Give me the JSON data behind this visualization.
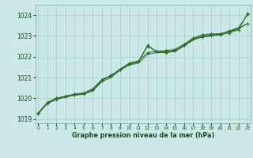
{
  "background_color": "#cce8e8",
  "grid_color": "#aacccc",
  "line_color": "#2d6b2d",
  "marker_color": "#2d6b2d",
  "text_color": "#1a4a1a",
  "xlabel": "Graphe pression niveau de la mer (hPa)",
  "ylim": [
    1018.8,
    1024.5
  ],
  "xlim": [
    -0.3,
    23.3
  ],
  "yticks": [
    1019,
    1020,
    1021,
    1022,
    1023,
    1024
  ],
  "xticks": [
    0,
    1,
    2,
    3,
    4,
    5,
    6,
    7,
    8,
    9,
    10,
    11,
    12,
    13,
    14,
    15,
    16,
    17,
    18,
    19,
    20,
    21,
    22,
    23
  ],
  "s1_x": [
    0,
    1,
    2,
    3,
    4,
    5,
    6,
    7,
    8,
    9,
    10,
    11,
    12,
    13,
    14,
    15,
    16,
    17,
    18,
    19,
    20,
    21,
    22,
    23
  ],
  "s1_y": [
    1019.3,
    1019.8,
    1020.0,
    1020.1,
    1020.15,
    1020.2,
    1020.4,
    1020.85,
    1021.1,
    1021.4,
    1021.65,
    1021.75,
    1022.55,
    1022.25,
    1022.2,
    1022.3,
    1022.55,
    1022.85,
    1022.95,
    1023.0,
    1023.05,
    1023.15,
    1023.3,
    1024.1
  ],
  "s2_x": [
    0,
    1,
    2,
    3,
    4,
    5,
    6,
    7,
    8,
    9,
    10,
    11,
    12,
    13,
    14,
    15,
    16,
    17,
    18,
    19,
    20,
    21,
    22,
    23
  ],
  "s2_y": [
    1019.25,
    1019.75,
    1019.95,
    1020.05,
    1020.15,
    1020.2,
    1020.35,
    1020.8,
    1021.0,
    1021.35,
    1021.6,
    1021.7,
    1022.1,
    1022.2,
    1022.2,
    1022.25,
    1022.5,
    1022.8,
    1022.95,
    1023.0,
    1023.1,
    1023.2,
    1023.35,
    1023.6
  ],
  "s3_x": [
    0,
    1,
    2,
    3,
    4,
    5,
    6,
    7,
    8,
    9,
    10,
    11,
    12,
    13,
    14,
    15,
    16,
    17,
    18,
    19,
    20,
    21,
    22,
    23
  ],
  "s3_y": [
    1019.25,
    1019.75,
    1019.95,
    1020.1,
    1020.2,
    1020.25,
    1020.45,
    1020.9,
    1021.05,
    1021.4,
    1021.7,
    1021.8,
    1022.2,
    1022.25,
    1022.25,
    1022.3,
    1022.55,
    1022.85,
    1023.0,
    1023.05,
    1023.1,
    1023.2,
    1023.38,
    1023.6
  ],
  "s4_x": [
    1,
    2,
    3,
    4,
    5,
    6,
    7,
    8,
    9,
    10,
    11,
    12,
    13,
    14,
    15,
    16,
    17,
    18,
    19,
    20,
    21,
    22,
    23
  ],
  "s4_y": [
    1019.8,
    1020.0,
    1020.1,
    1020.2,
    1020.25,
    1020.45,
    1020.9,
    1021.1,
    1021.4,
    1021.65,
    1021.75,
    1022.5,
    1022.25,
    1022.3,
    1022.35,
    1022.6,
    1022.9,
    1023.05,
    1023.1,
    1023.1,
    1023.25,
    1023.4,
    1024.05
  ]
}
